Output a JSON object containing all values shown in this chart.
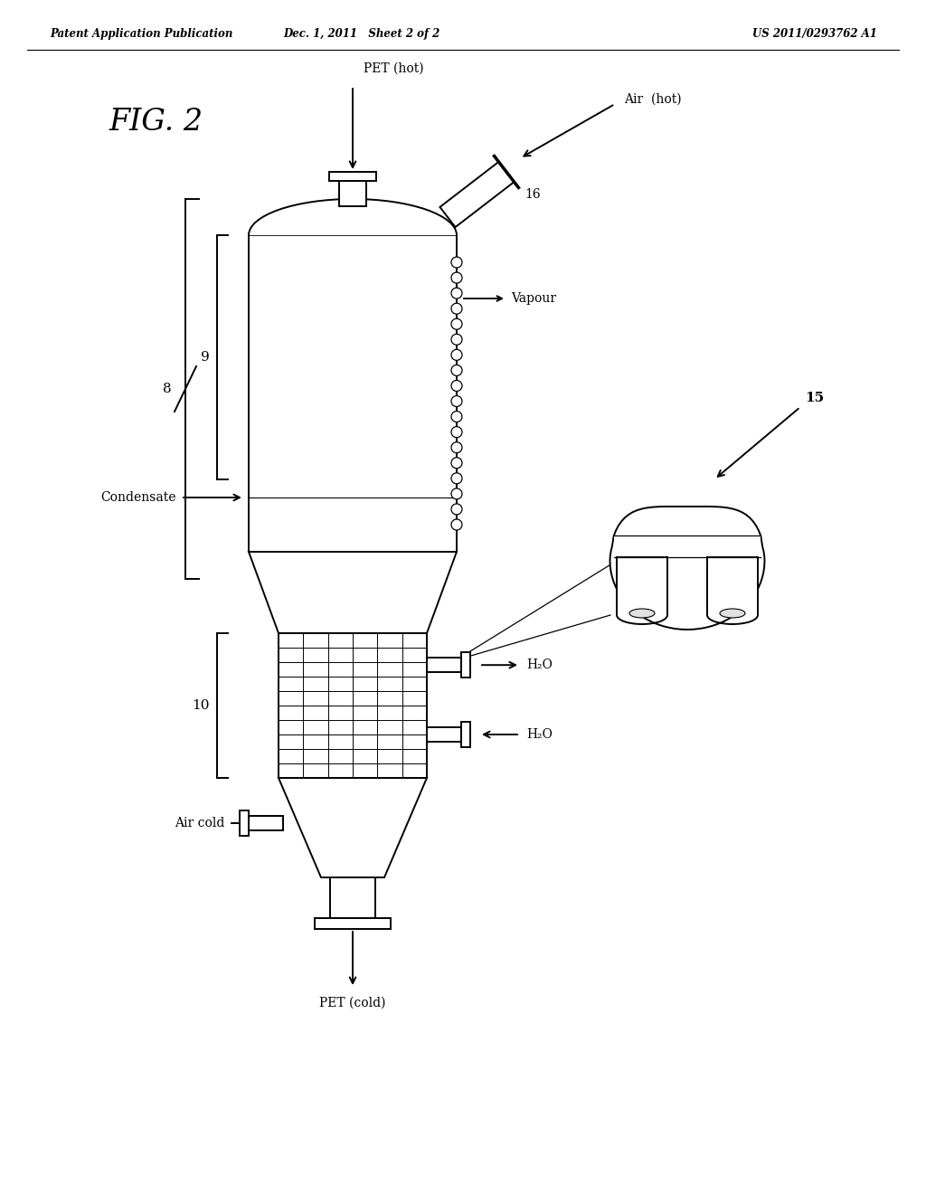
{
  "bg_color": "#ffffff",
  "header_left": "Patent Application Publication",
  "header_center": "Dec. 1, 2011   Sheet 2 of 2",
  "header_right": "US 2011/0293762 A1",
  "fig_label": "FIG. 2",
  "labels": {
    "pet_hot": "PET (hot)",
    "air_hot": "Air  (hot)",
    "ref_16": "16",
    "vapour": "Vapour",
    "ref_8": "8",
    "ref_9": "9",
    "condensate": "Condensate",
    "ref_10": "10",
    "h2o_top": "H₂O",
    "h2o_bot": "H₂O",
    "air_cold": "Air cold",
    "pet_cold": "PET (cold)",
    "ref_15": "15"
  }
}
